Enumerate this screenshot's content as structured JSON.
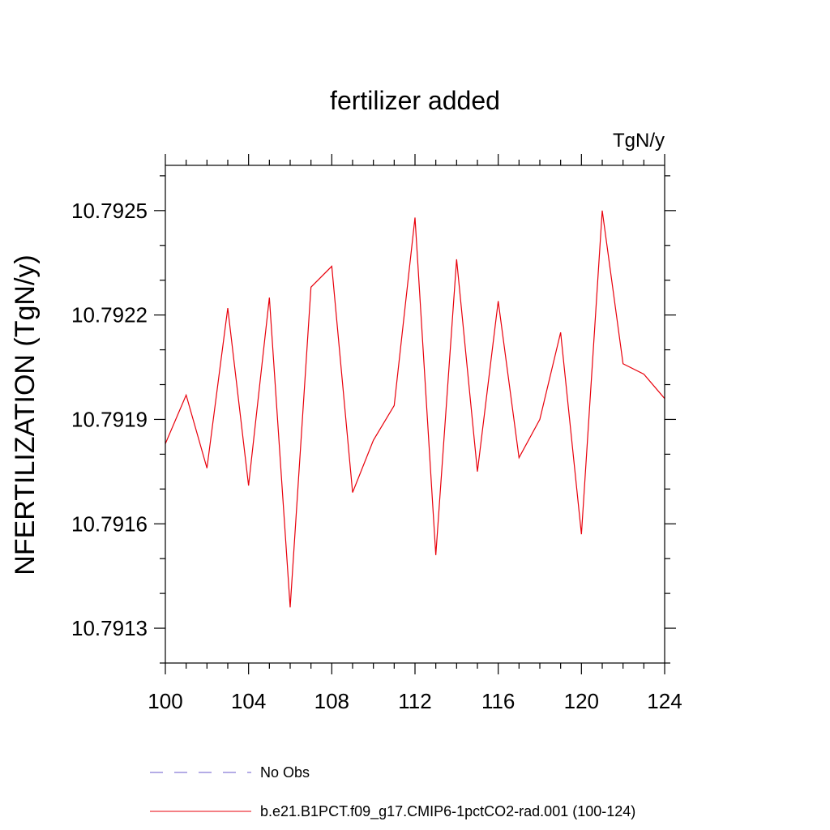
{
  "chart_data": {
    "type": "line",
    "title": "fertilizer added",
    "units": "TgN/y",
    "xlabel": "",
    "ylabel": "NFERTILIZATION  (TgN/y)",
    "xlim": [
      100,
      124
    ],
    "ylim": [
      10.7912,
      10.79263
    ],
    "x_ticks": [
      100,
      104,
      108,
      112,
      116,
      120,
      124
    ],
    "x_tick_labels": [
      "100",
      "104",
      "108",
      "112",
      "116",
      "120",
      "124"
    ],
    "y_ticks": [
      10.7913,
      10.7916,
      10.7919,
      10.7922,
      10.7925
    ],
    "y_tick_labels": [
      "10.7913",
      "10.7916",
      "10.7919",
      "10.7922",
      "10.7925"
    ],
    "grid": false,
    "legend_position": "bottom",
    "series": [
      {
        "name": "No Obs",
        "color": "#6a5acd",
        "style": "dashed",
        "x": [],
        "values": []
      },
      {
        "name": "b.e21.B1PCT.f09_g17.CMIP6-1pctCO2-rad.001 (100-124)",
        "color": "#e8000b",
        "style": "solid",
        "x": [
          100,
          101,
          102,
          103,
          104,
          105,
          106,
          107,
          108,
          109,
          110,
          111,
          112,
          113,
          114,
          115,
          116,
          117,
          118,
          119,
          120,
          121,
          122,
          123,
          124
        ],
        "values": [
          10.79183,
          10.79197,
          10.79176,
          10.79222,
          10.79171,
          10.79225,
          10.79136,
          10.79228,
          10.79234,
          10.79169,
          10.79184,
          10.79194,
          10.79248,
          10.79151,
          10.79236,
          10.79175,
          10.79224,
          10.79179,
          10.7919,
          10.79215,
          10.79157,
          10.7925,
          10.79206,
          10.79203,
          10.79196
        ]
      }
    ]
  }
}
